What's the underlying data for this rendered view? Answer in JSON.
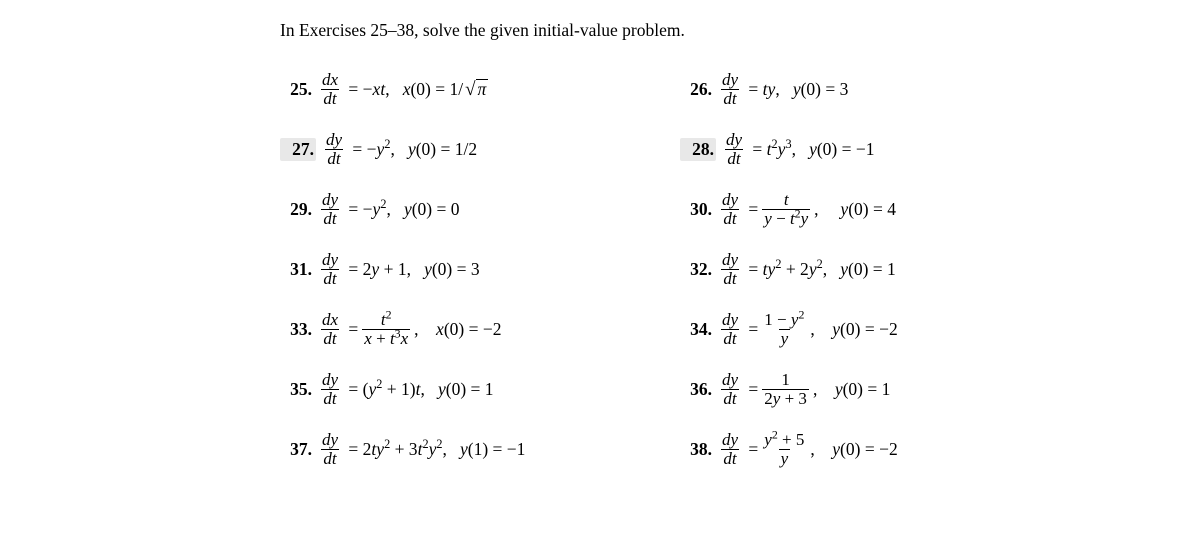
{
  "instruction": "In Exercises 25–38, solve the given initial-value problem.",
  "highlight_color": "#e8e8e8",
  "p25": {
    "n": "25.",
    "dvar_num": "dx",
    "dvar_den": "dt",
    "rhs1": "= −",
    "rhs1b": "xt",
    "rhs1c": ",",
    "ic_var": "x",
    "ic_arg": "(0) = 1/",
    "sqrt_arg": "π"
  },
  "p26": {
    "n": "26.",
    "dvar_num": "dy",
    "dvar_den": "dt",
    "rhs": "= ",
    "rhs_it": "ty",
    "rhs_tail": ",",
    "ic": "y",
    "ic_tail": "(0) = 3"
  },
  "p27": {
    "n": "27.",
    "dvar_num": "dy",
    "dvar_den": "dt",
    "rhs": "= −",
    "rhs_it": "y",
    "sup": "2",
    "rhs_tail": ",",
    "ic": "y",
    "ic_tail": "(0) = 1/2"
  },
  "p28": {
    "n": "28.",
    "dvar_num": "dy",
    "dvar_den": "dt",
    "rhs": "= ",
    "rhs_t": "t",
    "sup_t": "2",
    "rhs_y": "y",
    "sup_y": "3",
    "rhs_tail": ",",
    "ic": "y",
    "ic_tail": "(0) = −1"
  },
  "p29": {
    "n": "29.",
    "dvar_num": "dy",
    "dvar_den": "dt",
    "rhs": "= −",
    "rhs_it": "y",
    "sup": "2",
    "rhs_tail": ",",
    "ic": "y",
    "ic_tail": "(0) = 0"
  },
  "p30": {
    "n": "30.",
    "dvar_num": "dy",
    "dvar_den": "dt",
    "rhs": "= ",
    "frac_num": "t",
    "frac_den_a": "y",
    "frac_den_b": " − ",
    "frac_den_c": "t",
    "frac_den_c_sup": "2",
    "frac_den_d": "y",
    "rhs_tail": ",",
    "ic": "y",
    "ic_tail": "(0) = 4"
  },
  "p31": {
    "n": "31.",
    "dvar_num": "dy",
    "dvar_den": "dt",
    "rhs": "= 2",
    "rhs_it": "y",
    "rhs_tail": " + 1,",
    "ic": "y",
    "ic_tail": "(0) = 3"
  },
  "p32": {
    "n": "32.",
    "dvar_num": "dy",
    "dvar_den": "dt",
    "rhs": "= ",
    "t1": "ty",
    "t1sup": "2",
    "plus": " + 2",
    "t2": "y",
    "t2sup": "2",
    "rhs_tail": ",",
    "ic": "y",
    "ic_tail": "(0) = 1"
  },
  "p33": {
    "n": "33.",
    "dvar_num": "dx",
    "dvar_den": "dt",
    "rhs": "= ",
    "num_t": "t",
    "num_sup": "2",
    "den_a": "x",
    "den_b": " + ",
    "den_c": "t",
    "den_c_sup": "3",
    "den_d": "x",
    "rhs_tail": ",",
    "ic": "x",
    "ic_tail": "(0) = −2"
  },
  "p34": {
    "n": "34.",
    "dvar_num": "dy",
    "dvar_den": "dt",
    "rhs": "= ",
    "num_a": "1 − ",
    "num_b": "y",
    "num_sup": "2",
    "den": "y",
    "rhs_tail": ",",
    "ic": "y",
    "ic_tail": "(0) = −2"
  },
  "p35": {
    "n": "35.",
    "dvar_num": "dy",
    "dvar_den": "dt",
    "rhs": "= (",
    "y": "y",
    "ysup": "2",
    "mid": " + 1)",
    "t": "t",
    "rhs_tail": ",",
    "ic": "y",
    "ic_tail": "(0) = 1"
  },
  "p36": {
    "n": "36.",
    "dvar_num": "dy",
    "dvar_den": "dt",
    "rhs": "= ",
    "num": "1",
    "den_a": "2",
    "den_b": "y",
    "den_c": " + 3",
    "rhs_tail": ",",
    "ic": "y",
    "ic_tail": "(0) = 1"
  },
  "p37": {
    "n": "37.",
    "dvar_num": "dy",
    "dvar_den": "dt",
    "rhs": "= 2",
    "t1": "ty",
    "t1sup": "2",
    "plus": " + 3",
    "t2": "t",
    "t2sup": "2",
    "t3": "y",
    "t3sup": "2",
    "rhs_tail": ",",
    "ic": "y",
    "ic_tail": "(1) = −1"
  },
  "p38": {
    "n": "38.",
    "dvar_num": "dy",
    "dvar_den": "dt",
    "rhs": "= ",
    "num_a": "y",
    "num_sup": "2",
    "num_b": " + 5",
    "den": "y",
    "rhs_tail": ",",
    "ic": "y",
    "ic_tail": "(0) = −2"
  }
}
